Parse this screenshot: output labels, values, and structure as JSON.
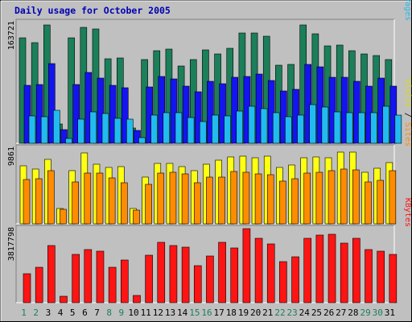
{
  "chart_data": {
    "type": "bar",
    "title": "Daily usage for October 2005",
    "days": [
      "1",
      "2",
      "3",
      "4",
      "5",
      "6",
      "7",
      "8",
      "9",
      "10",
      "11",
      "12",
      "13",
      "14",
      "15",
      "16",
      "17",
      "18",
      "19",
      "20",
      "21",
      "22",
      "23",
      "24",
      "25",
      "26",
      "27",
      "28",
      "29",
      "30",
      "31"
    ],
    "weekend_days": [
      "1",
      "2",
      "8",
      "9",
      "15",
      "16",
      "22",
      "23",
      "29",
      "30"
    ],
    "panels": [
      {
        "id": "hits",
        "max_label": "163721",
        "max": 163721,
        "side_label": [
          "Pages",
          "Files",
          "Hits"
        ],
        "series": [
          {
            "name": "Hits",
            "color": "#1B7F5A",
            "values": [
              143000,
              136000,
              160000,
              26000,
              143000,
              157000,
              155000,
              115000,
              116000,
              21000,
              113000,
              126000,
              128000,
              105000,
              113000,
              127000,
              121000,
              129000,
              149000,
              149000,
              145000,
              106000,
              107000,
              160000,
              148000,
              132000,
              133000,
              125000,
              121000,
              119000,
              113000
            ]
          },
          {
            "name": "Files",
            "color": "#1414F0",
            "values": [
              79000,
              80000,
              108000,
              19000,
              80000,
              96000,
              88000,
              79000,
              75000,
              17000,
              76000,
              91000,
              87000,
              78000,
              70000,
              84000,
              81000,
              89000,
              91000,
              94000,
              85000,
              71000,
              73000,
              107000,
              104000,
              90000,
              90000,
              84000,
              78000,
              88000,
              77000
            ]
          },
          {
            "name": "Pages",
            "color": "#22BBF0",
            "values": [
              37000,
              36000,
              45000,
              7000,
              33000,
              43000,
              40000,
              34000,
              33000,
              8000,
              38000,
              41000,
              42000,
              35000,
              29000,
              38000,
              37000,
              44000,
              50000,
              47000,
              42000,
              36000,
              38000,
              52000,
              49000,
              43000,
              41000,
              41000,
              42000,
              50000,
              38000
            ]
          }
        ]
      },
      {
        "id": "visits",
        "max_label": "9861",
        "max": 9861,
        "side_label": [
          "Sites",
          "Visits"
        ],
        "series": [
          {
            "name": "Visits",
            "color": "#FFFF14",
            "values": [
              7600,
              7100,
              8400,
              2000,
              6900,
              9200,
              7800,
              7300,
              7500,
              2000,
              6100,
              7900,
              7900,
              7500,
              6900,
              7800,
              8300,
              8700,
              8800,
              8600,
              8800,
              7300,
              7700,
              8600,
              8700,
              8600,
              9300,
              9300,
              6700,
              7200,
              8000
            ]
          },
          {
            "name": "Sites",
            "color": "#FF8C00",
            "values": [
              5800,
              5900,
              6900,
              1900,
              5500,
              6600,
              6600,
              6000,
              5400,
              1800,
              5100,
              6600,
              6700,
              6500,
              5300,
              6100,
              6100,
              6800,
              6700,
              6500,
              6400,
              5600,
              5900,
              6600,
              6700,
              6900,
              7100,
              7000,
              5500,
              5700,
              6900
            ]
          }
        ]
      },
      {
        "id": "kbytes",
        "max_label": "3817798",
        "max": 3817798,
        "side_label": [
          "KBytes"
        ],
        "series": [
          {
            "name": "KBytes",
            "color": "#FF1414",
            "values": [
              1500000,
              1840000,
              2960000,
              350000,
              2500000,
              2730000,
              2650000,
              1820000,
              2220000,
              370000,
              2430000,
              3100000,
              2950000,
              2860000,
              1910000,
              2400000,
              3120000,
              2820000,
              3817798,
              3300000,
              3050000,
              2100000,
              2360000,
              3300000,
              3470000,
              3520000,
              3080000,
              3330000,
              2740000,
              2660000,
              2500000
            ]
          }
        ]
      }
    ]
  }
}
